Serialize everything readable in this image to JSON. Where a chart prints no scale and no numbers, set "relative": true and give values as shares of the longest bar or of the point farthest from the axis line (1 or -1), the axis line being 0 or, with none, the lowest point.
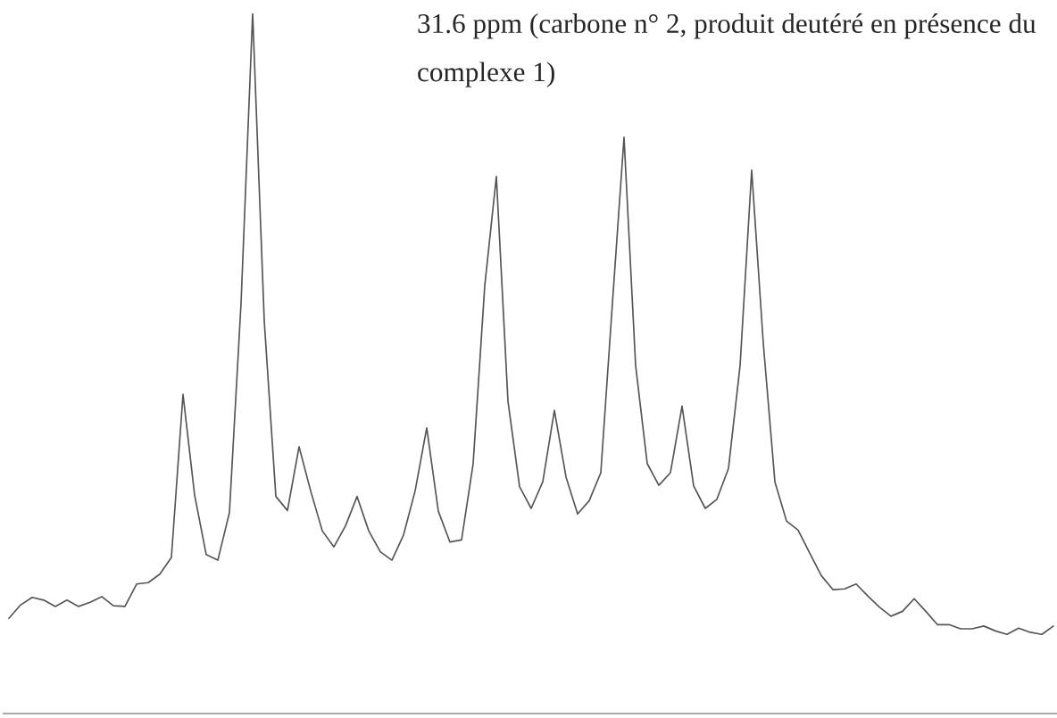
{
  "chart_data": {
    "type": "line",
    "relative": true,
    "color": "#555555",
    "annotations": [
      "31.6 ppm (carbone n° 2, produit deutéré en présence du complexe 1)"
    ],
    "categories": [
      null,
      null,
      null,
      null,
      null,
      null,
      null,
      null,
      null,
      null,
      null,
      null,
      null,
      null,
      null,
      null,
      null,
      null,
      null,
      null,
      null,
      null,
      null,
      null,
      null,
      null,
      null,
      null,
      null,
      null,
      null,
      null,
      null,
      null,
      null,
      null,
      null,
      null,
      null,
      null,
      null,
      null,
      null,
      null,
      null,
      null,
      null,
      null,
      null,
      null,
      null,
      null,
      null,
      null,
      null,
      null,
      null,
      null,
      null,
      null,
      null,
      null,
      null,
      null,
      null,
      null,
      null,
      null,
      null,
      null,
      null,
      null,
      null,
      null,
      null,
      null,
      null,
      null,
      null,
      null,
      null,
      null,
      null,
      null,
      null,
      null,
      null,
      null,
      null,
      null,
      null
    ],
    "values": [
      0.136,
      0.155,
      0.166,
      0.162,
      0.153,
      0.162,
      0.153,
      0.159,
      0.167,
      0.154,
      0.153,
      0.185,
      0.187,
      0.199,
      0.223,
      0.456,
      0.312,
      0.227,
      0.219,
      0.287,
      0.586,
      1,
      0.561,
      0.31,
      0.29,
      0.381,
      0.318,
      0.261,
      0.238,
      0.268,
      0.31,
      0.261,
      0.231,
      0.219,
      0.255,
      0.318,
      0.408,
      0.289,
      0.245,
      0.248,
      0.357,
      0.611,
      0.767,
      0.446,
      0.324,
      0.293,
      0.331,
      0.433,
      0.338,
      0.285,
      0.304,
      0.344,
      0.586,
      0.823,
      0.497,
      0.357,
      0.326,
      0.344,
      0.439,
      0.325,
      0.293,
      0.306,
      0.35,
      0.497,
      0.776,
      0.529,
      0.331,
      0.275,
      0.262,
      0.229,
      0.197,
      0.177,
      0.178,
      0.185,
      0.168,
      0.152,
      0.139,
      0.146,
      0.164,
      0.146,
      0.127,
      0.127,
      0.121,
      0.121,
      0.125,
      0.118,
      0.113,
      0.122,
      0.116,
      0.113,
      0.125
    ]
  }
}
